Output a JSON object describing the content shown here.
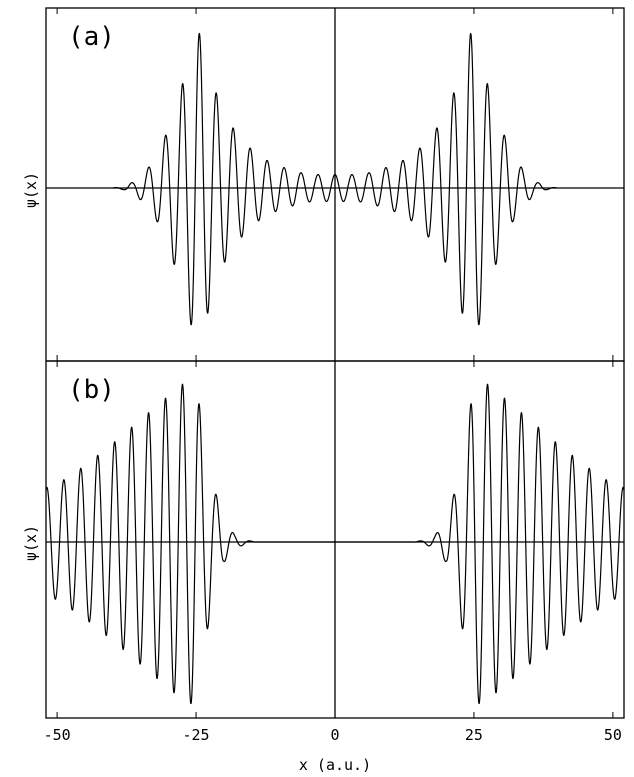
{
  "chart_data": [
    {
      "type": "line",
      "panel_label": "(a)",
      "ylabel": "ψ(x)",
      "xlim": [
        -52,
        52
      ],
      "ylim": [
        -1.0,
        1.0
      ],
      "x_ticks": [
        -50,
        -25,
        0,
        25,
        50
      ],
      "series": [
        {
          "description_points": "oscillating wave packet symmetric about x=0, peaks near x=±25",
          "x": [
            -40,
            -38,
            -36,
            -34,
            -32,
            -30,
            -28,
            -26,
            -25,
            -24,
            -22,
            -20,
            -18,
            -16,
            -14,
            -12,
            -10,
            -8,
            -6,
            -4,
            -2,
            0,
            2,
            4,
            6,
            8,
            10,
            12,
            14,
            16,
            18,
            20,
            22,
            24,
            25,
            26,
            28,
            30,
            32,
            34,
            36,
            38,
            40
          ],
          "y": [
            0.0,
            0.01,
            0.04,
            0.1,
            0.2,
            0.35,
            0.55,
            0.8,
            0.95,
            0.9,
            0.62,
            0.45,
            0.34,
            0.26,
            0.2,
            0.16,
            0.13,
            0.11,
            0.09,
            0.08,
            0.08,
            0.08,
            0.08,
            0.08,
            0.09,
            0.11,
            0.13,
            0.16,
            0.2,
            0.26,
            0.34,
            0.45,
            0.62,
            0.9,
            0.95,
            0.8,
            0.55,
            0.35,
            0.2,
            0.1,
            0.04,
            0.01,
            0.0
          ]
        }
      ]
    },
    {
      "type": "line",
      "panel_label": "(b)",
      "ylabel": "ψ(x)",
      "xlim": [
        -52,
        52
      ],
      "ylim": [
        -1.0,
        1.0
      ],
      "x_ticks": [
        -50,
        -25,
        0,
        25,
        50
      ],
      "x_tick_labels": [
        "-50",
        "-25",
        "0",
        "25",
        "50"
      ],
      "xlabel": "x (a.u.)",
      "series": [
        {
          "x": [
            -52,
            -50,
            -45,
            -40,
            -35,
            -30,
            -27,
            -25,
            -24,
            -22,
            -20,
            -18,
            -16,
            -14,
            14,
            16,
            18,
            20,
            22,
            24,
            25,
            27,
            30,
            35,
            40,
            45,
            50,
            52
          ],
          "y": [
            0.32,
            0.34,
            0.45,
            0.58,
            0.72,
            0.86,
            0.94,
            0.96,
            0.7,
            0.35,
            0.12,
            0.04,
            0.01,
            0.0,
            0.0,
            0.01,
            0.04,
            0.12,
            0.35,
            0.7,
            0.96,
            0.94,
            0.86,
            0.72,
            0.58,
            0.45,
            0.34,
            0.32
          ]
        }
      ]
    }
  ]
}
